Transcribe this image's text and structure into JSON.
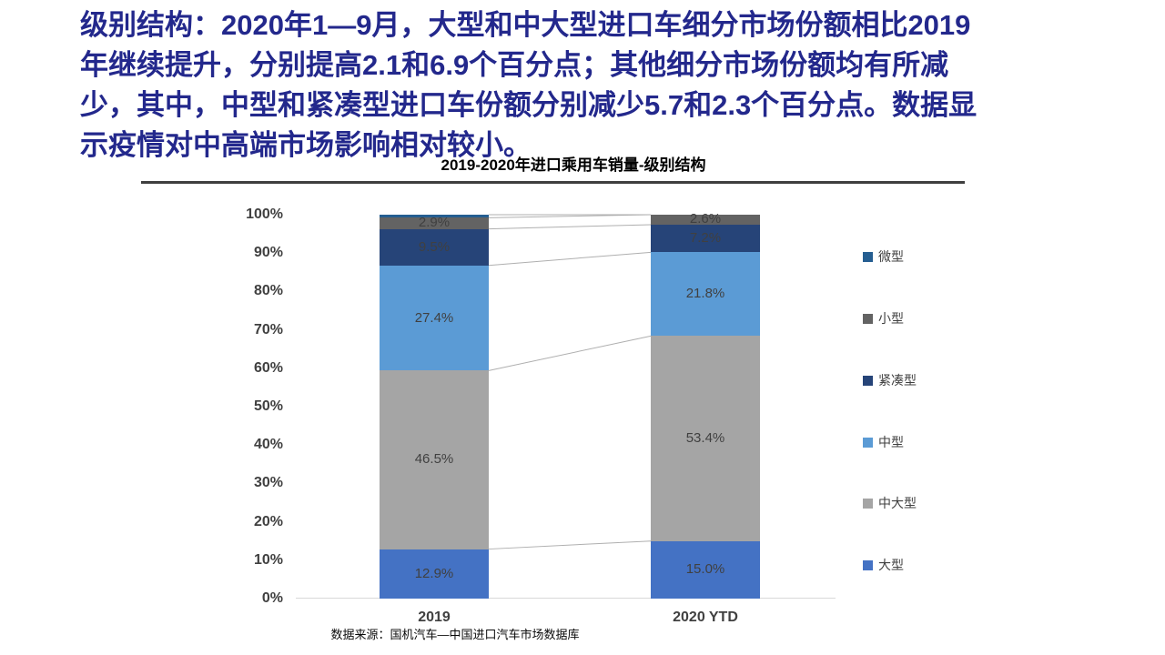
{
  "slide": {
    "headline": {
      "color": "#23288C",
      "lines": [
        "级别结构：2020年1—9月，大型和中大型进口车细分市场份额相比2019",
        "年继续提升，分别提高2.1和6.9个百分点；其他细分市场份额均有所减",
        "少，其中，中型和紧凑型进口车份额分别减少5.7和2.3个百分点。数据显",
        "示疫情对中高端市场影响相对较小。"
      ]
    },
    "source_note": "数据来源：国机汽车—中国进口汽车市场数据库"
  },
  "chart_data": {
    "type": "bar",
    "stacked": true,
    "percent_stack": true,
    "title": "2019-2020年进口乘用车销量-级别结构",
    "categories": [
      "2019",
      "2020 YTD"
    ],
    "unit": "%",
    "ylim": [
      0,
      100
    ],
    "ytick_step": 10,
    "grid": false,
    "legend_position": "right",
    "series_bottom_to_top": [
      {
        "name": "大型",
        "color": "#4472C4",
        "values": [
          12.9,
          15.0
        ]
      },
      {
        "name": "中大型",
        "color": "#A5A5A5",
        "values": [
          46.5,
          53.4
        ]
      },
      {
        "name": "中型",
        "color": "#5B9BD5",
        "values": [
          27.4,
          21.8
        ]
      },
      {
        "name": "紧凑型",
        "color": "#264478",
        "values": [
          9.5,
          7.2
        ]
      },
      {
        "name": "小型",
        "color": "#636363",
        "values": [
          2.9,
          2.6
        ]
      },
      {
        "name": "微型",
        "color": "#255E91",
        "values": [
          0.8,
          0.0
        ]
      }
    ],
    "legend_top_to_bottom": [
      "微型",
      "小型",
      "紧凑型",
      "中型",
      "中大型",
      "大型"
    ],
    "label_color": "#404040",
    "axis_color": "#404040",
    "legend_text_color": "#404040",
    "connector_color": "#AFAFAF",
    "baseline_color": "#D9D9D9",
    "min_label_value": 2
  }
}
